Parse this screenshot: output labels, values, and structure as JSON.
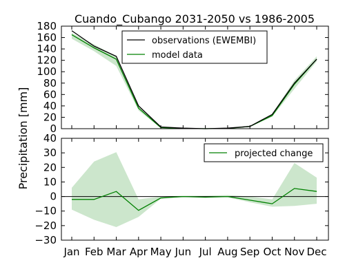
{
  "chart_data": {
    "title": "Cuando_Cubango 2031-2050 vs 1986-2005",
    "ylabel": "Precipitation [mm]",
    "categories": [
      "Jan",
      "Feb",
      "Mar",
      "Apr",
      "May",
      "Jun",
      "Jul",
      "Aug",
      "Sep",
      "Oct",
      "Nov",
      "Dec"
    ],
    "panels": [
      {
        "type": "line",
        "ylim": [
          0,
          180
        ],
        "yticks": [
          0,
          20,
          40,
          60,
          80,
          100,
          120,
          140,
          160,
          180
        ],
        "legend_position": "top-center",
        "series": [
          {
            "name": "observations (EWEMBI)",
            "color": "#000000",
            "values": [
              172,
              145,
              127,
              40,
              3,
              1,
              0,
              1,
              4,
              25,
              80,
              122
            ]
          },
          {
            "name": "model data",
            "color": "#008000",
            "values": [
              165,
              142,
              122,
              36,
              2,
              0.5,
              0,
              0.5,
              4,
              23,
              78,
              122
            ],
            "band_low": [
              158,
              136,
              110,
              32,
              1,
              0,
              0,
              0,
              3,
              21,
              70,
              118
            ],
            "band_high": [
              168,
              148,
              127,
              40,
              3,
              1,
              0.5,
              1,
              5,
              26,
              85,
              127
            ]
          }
        ]
      },
      {
        "type": "line",
        "ylim": [
          -30,
          40
        ],
        "yticks": [
          -30,
          -20,
          -10,
          0,
          10,
          20,
          30,
          40
        ],
        "legend_position": "top-right",
        "zero_line": true,
        "series": [
          {
            "name": "projected change",
            "color": "#008000",
            "values": [
              -2,
              -2,
              3.5,
              -9.5,
              -1,
              0,
              -0.5,
              0,
              -2.5,
              -5,
              5.5,
              3.5
            ],
            "band_low": [
              -9,
              -16,
              -21,
              -14,
              -1.5,
              -0.5,
              -0.5,
              -0.5,
              -4,
              -7,
              -6.5,
              -5
            ],
            "band_high": [
              6,
              24,
              30.5,
              -2,
              0,
              0.5,
              0.5,
              1,
              0,
              -2,
              23,
              13
            ]
          }
        ]
      }
    ]
  }
}
